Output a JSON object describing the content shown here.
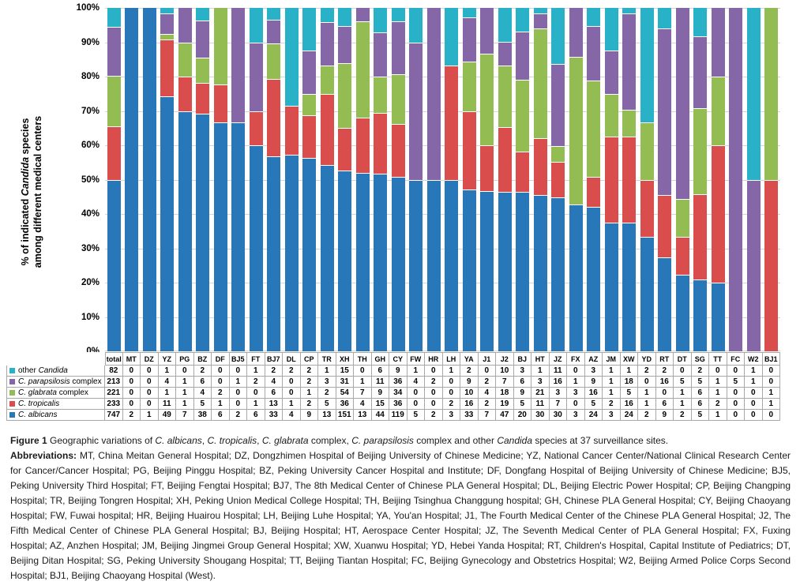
{
  "chart_data": {
    "type": "bar",
    "stacked": "100%",
    "orientation": "vertical",
    "grid": true,
    "gridline_color": "#d4d4d4",
    "ylim": [
      0,
      100
    ],
    "yticks": [
      "0%",
      "10%",
      "20%",
      "30%",
      "40%",
      "50%",
      "60%",
      "70%",
      "80%",
      "90%",
      "100%"
    ],
    "ylabel_lines": [
      [
        {
          "t": "% of indicated "
        },
        {
          "t": "Candida",
          "i": true
        },
        {
          "t": " species"
        }
      ],
      [
        {
          "t": "among different medical centers"
        }
      ]
    ],
    "categories": [
      "total",
      "MT",
      "DZ",
      "YZ",
      "PG",
      "BZ",
      "DF",
      "BJ5",
      "FT",
      "BJ7",
      "DL",
      "CP",
      "TR",
      "XH",
      "TH",
      "GH",
      "CY",
      "FW",
      "HR",
      "LH",
      "YA",
      "J1",
      "J2",
      "BJ",
      "HT",
      "JZ",
      "FX",
      "AZ",
      "JM",
      "XW",
      "YD",
      "RT",
      "DT",
      "SG",
      "TT",
      "FC",
      "W2",
      "BJ1"
    ],
    "series": [
      {
        "name": "C. albicans",
        "label_segments": [
          {
            "t": "C. albicans",
            "i": true
          }
        ],
        "color": "#2878B9",
        "values": [
          747,
          2,
          1,
          49,
          7,
          38,
          6,
          2,
          6,
          33,
          4,
          9,
          13,
          151,
          13,
          44,
          119,
          5,
          2,
          3,
          33,
          7,
          47,
          20,
          30,
          30,
          3,
          24,
          3,
          24,
          2,
          9,
          2,
          5,
          1,
          0,
          0,
          0
        ]
      },
      {
        "name": "C. tropicalis",
        "label_segments": [
          {
            "t": "C. tropicalis",
            "i": true
          }
        ],
        "color": "#D94D4D",
        "values": [
          233,
          0,
          0,
          11,
          1,
          5,
          1,
          0,
          1,
          13,
          1,
          2,
          5,
          36,
          4,
          15,
          36,
          0,
          0,
          2,
          16,
          2,
          19,
          5,
          11,
          7,
          0,
          5,
          2,
          16,
          1,
          6,
          1,
          6,
          2,
          0,
          0,
          1
        ]
      },
      {
        "name": "C. glabrata complex",
        "label_segments": [
          {
            "t": "C. glabrata",
            "i": true
          },
          {
            "t": " complex"
          }
        ],
        "color": "#93BC53",
        "values": [
          221,
          0,
          0,
          1,
          1,
          4,
          2,
          0,
          0,
          6,
          0,
          1,
          2,
          54,
          7,
          9,
          34,
          0,
          0,
          0,
          10,
          4,
          18,
          9,
          21,
          3,
          3,
          16,
          1,
          5,
          1,
          0,
          1,
          6,
          1,
          0,
          0,
          1
        ]
      },
      {
        "name": "C. parapsilosis complex",
        "label_segments": [
          {
            "t": "C. parapsilosis",
            "i": true
          },
          {
            "t": " complex"
          }
        ],
        "color": "#8566A6",
        "values": [
          213,
          0,
          0,
          4,
          1,
          6,
          0,
          1,
          2,
          4,
          0,
          2,
          3,
          31,
          1,
          11,
          36,
          4,
          2,
          0,
          9,
          2,
          7,
          6,
          3,
          16,
          1,
          9,
          1,
          18,
          0,
          16,
          5,
          5,
          1,
          5,
          1,
          0
        ]
      },
      {
        "name": "other Candida",
        "label_segments": [
          {
            "t": "other "
          },
          {
            "t": "Candida",
            "i": true
          }
        ],
        "color": "#29B2C7",
        "values": [
          82,
          0,
          0,
          1,
          0,
          2,
          0,
          0,
          1,
          2,
          2,
          2,
          1,
          15,
          0,
          6,
          9,
          1,
          0,
          1,
          2,
          0,
          10,
          3,
          1,
          11,
          0,
          3,
          1,
          1,
          2,
          2,
          0,
          2,
          0,
          0,
          1,
          0
        ]
      }
    ],
    "legend_position": "table-left",
    "table_row_order_top_to_bottom": [
      "other Candida",
      "C. parapsilosis complex",
      "C. glabrata complex",
      "C. tropicalis",
      "C. albicans"
    ]
  },
  "caption": {
    "figure_segments": [
      {
        "t": "Figure 1 ",
        "b": true
      },
      {
        "t": "Geographic variations of "
      },
      {
        "t": "C. albicans",
        "i": true
      },
      {
        "t": ", "
      },
      {
        "t": "C. tropicalis",
        "i": true
      },
      {
        "t": ", "
      },
      {
        "t": "C. glabrata",
        "i": true
      },
      {
        "t": " complex, "
      },
      {
        "t": "C. parapsilosis",
        "i": true
      },
      {
        "t": " complex and other "
      },
      {
        "t": "Candida",
        "i": true
      },
      {
        "t": " species at 37 surveillance sites."
      }
    ],
    "abbreviations_segments": [
      {
        "t": "Abbreviations: ",
        "b": true
      },
      {
        "t": "MT, China Meitan General Hospital; DZ, Dongzhimen Hospital of Beijing University of Chinese Medicine; YZ, National Cancer Center/National Clinical Research Center for Cancer/Cancer Hospital; PG, Beijing Pinggu Hospital; BZ, Peking University Cancer Hospital and Institute; DF, Dongfang Hospital of Beijing University of Chinese Medicine; BJ5, Peking University Third Hospital; FT, Beijing Fengtai Hospital; BJ7, The 8th Medical Center of Chinese PLA General Hospital; DL, Beijing Electric Power Hospital; CP, Beijing Changping Hospital; TR, Beijing Tongren Hospital; XH, Peking Union Medical College Hospital; TH, Beijing Tsinghua Changgung hospital; GH, Chinese PLA General Hospital; CY, Beijing Chaoyang Hospital; FW, Fuwai hospital; HR, Beijing Huairou Hospital; LH, Beijing Luhe Hospital; YA, You'an Hospital; J1, The Fourth Medical Center of the Chinese PLA General Hospital; J2, The Fifth Medical Center of Chinese PLA General Hospital; BJ, Beijing Hospital; HT, Aerospace Center Hospital; JZ, The Seventh Medical Center of PLA General Hospital; FX, Fuxing Hospital; AZ, Anzhen Hospital; JM, Beijing Jingmei Group General Hospital; XW, Xuanwu Hospital; YD, Hebei Yanda Hospital; RT, Children's Hospital, Capital Institute of Pediatrics; DT, Beijing Ditan Hospital; SG, Peking University Shougang Hospital; TT, Beijing Tiantan Hospital; FC, Beijing Gynecology and Obstetrics Hospital; W2, Beijing Armed Police Corps Second Hospital; BJ1, Beijing Chaoyang Hospital (West)."
      }
    ]
  }
}
